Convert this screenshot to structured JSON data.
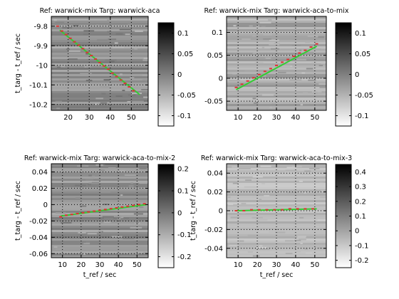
{
  "chart_data": [
    {
      "type": "heatmap",
      "title": "Ref: warwick-mix Targ: warwick-aca",
      "xlabel": "",
      "ylabel": "t_targ - t_ref / sec",
      "xlim": [
        12,
        58
      ],
      "ylim": [
        -10.23,
        -9.75
      ],
      "xticks": [
        20,
        30,
        40,
        50
      ],
      "yticks": [
        -9.8,
        -9.9,
        -10,
        -10.1,
        -10.2
      ],
      "ytick_labels": [
        "-9.8",
        "-9.9",
        "-10",
        "-10.1",
        "-10.2"
      ],
      "grid": true,
      "colorbar": {
        "ticks": [
          0.1,
          0.05,
          0,
          -0.05,
          -0.1
        ],
        "tick_labels": [
          "0.1",
          "0.05",
          "0",
          "-0.05",
          "-0.1"
        ],
        "range": [
          -0.125,
          0.125
        ]
      },
      "fit_line": {
        "color": "#33cc33",
        "x": [
          16,
          54
        ],
        "y": [
          -9.82,
          -10.15
        ]
      },
      "peak_points": {
        "color": "#dd3333",
        "x": [
          15,
          17,
          19,
          21,
          23,
          25,
          27,
          29,
          31,
          33,
          35,
          37,
          39,
          41,
          43,
          45,
          47,
          49,
          51
        ],
        "y": [
          -9.8,
          -9.825,
          -9.843,
          -9.862,
          -9.88,
          -9.897,
          -9.915,
          -9.934,
          -9.95,
          -9.968,
          -9.986,
          -10.003,
          -10.02,
          -10.04,
          -10.057,
          -10.075,
          -10.092,
          -10.11,
          -10.13
        ]
      }
    },
    {
      "type": "heatmap",
      "title": "Ref: warwick-mix Targ: warwick-aca-to-mix",
      "xlabel": "",
      "ylabel": "",
      "xlim": [
        4,
        56
      ],
      "ylim": [
        -0.07,
        0.135
      ],
      "xticks": [
        10,
        20,
        30,
        40,
        50
      ],
      "yticks": [
        0.1,
        0.05,
        0,
        -0.05
      ],
      "ytick_labels": [
        "0.1",
        "0.05",
        "0",
        "-0.05"
      ],
      "grid": true,
      "colorbar": {
        "ticks": [
          0.1,
          0.05,
          0,
          -0.05,
          -0.1
        ],
        "tick_labels": [
          "0.1",
          "0.05",
          "0",
          "-0.05",
          "-0.1"
        ],
        "range": [
          -0.125,
          0.125
        ]
      },
      "fit_line": {
        "color": "#33cc33",
        "x": [
          9,
          51
        ],
        "y": [
          -0.025,
          0.07
        ]
      },
      "peak_points": {
        "color": "#dd3333",
        "x": [
          9,
          12,
          15,
          18,
          21,
          24,
          27,
          30,
          33,
          36,
          39,
          42,
          45,
          48,
          51
        ],
        "y": [
          -0.02,
          -0.013,
          -0.006,
          0.001,
          0.008,
          0.015,
          0.021,
          0.028,
          0.035,
          0.041,
          0.048,
          0.055,
          0.061,
          0.068,
          0.075
        ]
      }
    },
    {
      "type": "heatmap",
      "title": "Ref: warwick-mix Targ: warwick-aca-to-mix-2",
      "xlabel": "t_ref / sec",
      "ylabel": "t_targ - t_ref / sec",
      "xlim": [
        4,
        56
      ],
      "ylim": [
        -0.065,
        0.05
      ],
      "xticks": [
        10,
        20,
        30,
        40,
        50
      ],
      "yticks": [
        0.04,
        0.02,
        0,
        -0.02,
        -0.04,
        -0.06
      ],
      "ytick_labels": [
        "0.04",
        "0.02",
        "0",
        "-0.02",
        "-0.04",
        "-0.06"
      ],
      "grid": true,
      "colorbar": {
        "ticks": [
          0.2,
          0.1,
          0,
          -0.1,
          -0.2
        ],
        "tick_labels": [
          "0.2",
          "0.1",
          "0",
          "-0.1",
          "-0.2"
        ],
        "range": [
          -0.25,
          0.22
        ]
      },
      "fit_line": {
        "color": "#33cc33",
        "x": [
          9,
          55
        ],
        "y": [
          -0.014,
          0.0
        ]
      },
      "peak_points": {
        "color": "#dd3333",
        "x": [
          9,
          12,
          15,
          18,
          21,
          24,
          27,
          30,
          33,
          36,
          39,
          42,
          45,
          48,
          51,
          54
        ],
        "y": [
          -0.015,
          -0.013,
          -0.012,
          -0.011,
          -0.01,
          -0.009,
          -0.008,
          -0.007,
          -0.006,
          -0.005,
          -0.004,
          -0.003,
          -0.002,
          -0.001,
          0.0,
          0.001
        ]
      }
    },
    {
      "type": "heatmap",
      "title": "Ref: warwick-mix Targ: warwick-aca-to-mix-3",
      "xlabel": "t_ref / sec",
      "ylabel": "t_targ - t_ref / sec",
      "xlim": [
        4,
        56
      ],
      "ylim": [
        -0.05,
        0.05
      ],
      "xticks": [
        10,
        20,
        30,
        40,
        50
      ],
      "yticks": [
        0.04,
        0.02,
        0,
        -0.02,
        -0.04
      ],
      "ytick_labels": [
        "0.04",
        "0.02",
        "0",
        "-0.02",
        "-0.04"
      ],
      "grid": true,
      "colorbar": {
        "ticks": [
          0.4,
          0.3,
          0.2,
          0.1,
          0,
          -0.1,
          -0.2
        ],
        "tick_labels": [
          "0.4",
          "0.3",
          "0.2",
          "0.1",
          "0",
          "-0.1",
          "-0.2"
        ],
        "range": [
          -0.25,
          0.45
        ]
      },
      "fit_line": {
        "color": "#33cc33",
        "x": [
          9,
          51
        ],
        "y": [
          0.0,
          0.002
        ]
      },
      "peak_points": {
        "color": "#dd3333",
        "x": [
          9,
          13,
          17,
          21,
          25,
          29,
          33,
          37,
          41,
          45,
          49
        ],
        "y": [
          0.0,
          0.0,
          0.001,
          0.001,
          0.001,
          0.001,
          0.001,
          0.002,
          0.002,
          0.002,
          0.002
        ]
      }
    }
  ]
}
